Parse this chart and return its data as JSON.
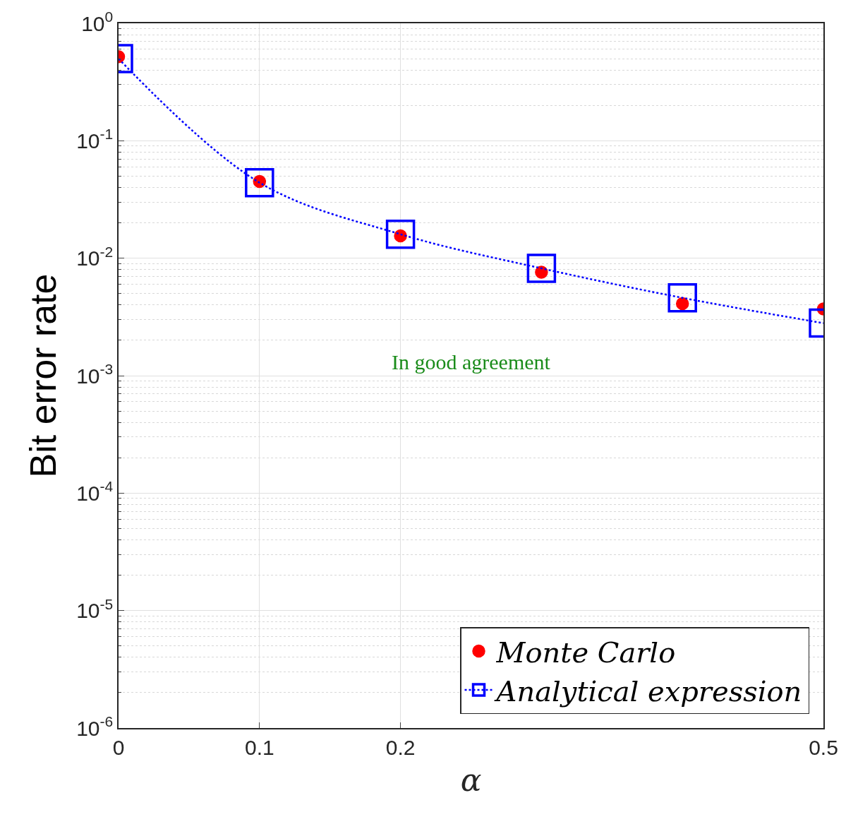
{
  "chart_data": {
    "type": "scatter",
    "xlabel": "α",
    "ylabel": "Bit error rate",
    "x": [
      0,
      0.1,
      0.2,
      0.3,
      0.4,
      0.5
    ],
    "series": [
      {
        "name": "Monte Carlo",
        "color": "#ff0000",
        "marker": "circle",
        "values": [
          0.52,
          0.045,
          0.0155,
          0.0076,
          0.0041,
          0.0037
        ]
      },
      {
        "name": "Analytical expression",
        "type": "line",
        "color": "#0000ff",
        "marker": "square",
        "line_style": "dotted",
        "values": [
          0.5,
          0.044,
          0.016,
          0.0082,
          0.0046,
          0.0028
        ]
      }
    ],
    "annotations": [
      "In good agreement"
    ],
    "xlim": [
      0,
      0.5
    ],
    "xticks": [
      0,
      0.1,
      0.2,
      0.5
    ],
    "ylim": [
      1e-06,
      1
    ],
    "log": true,
    "yticks": [
      {
        "value": 1e-06,
        "label": "10$^{-6}$"
      },
      {
        "value": 1e-05,
        "label": "10$^{-5}$"
      },
      {
        "value": 0.0001,
        "label": "10$^{-4}$"
      },
      {
        "value": 0.001,
        "label": "10$^{-3}$"
      },
      {
        "value": 0.01,
        "label": "10$^{-2}$"
      },
      {
        "value": 0.1,
        "label": "10$^{-1}$"
      },
      {
        "value": 1,
        "label": "10$^{0}$"
      }
    ],
    "grid": true,
    "legend": "bottom right"
  }
}
